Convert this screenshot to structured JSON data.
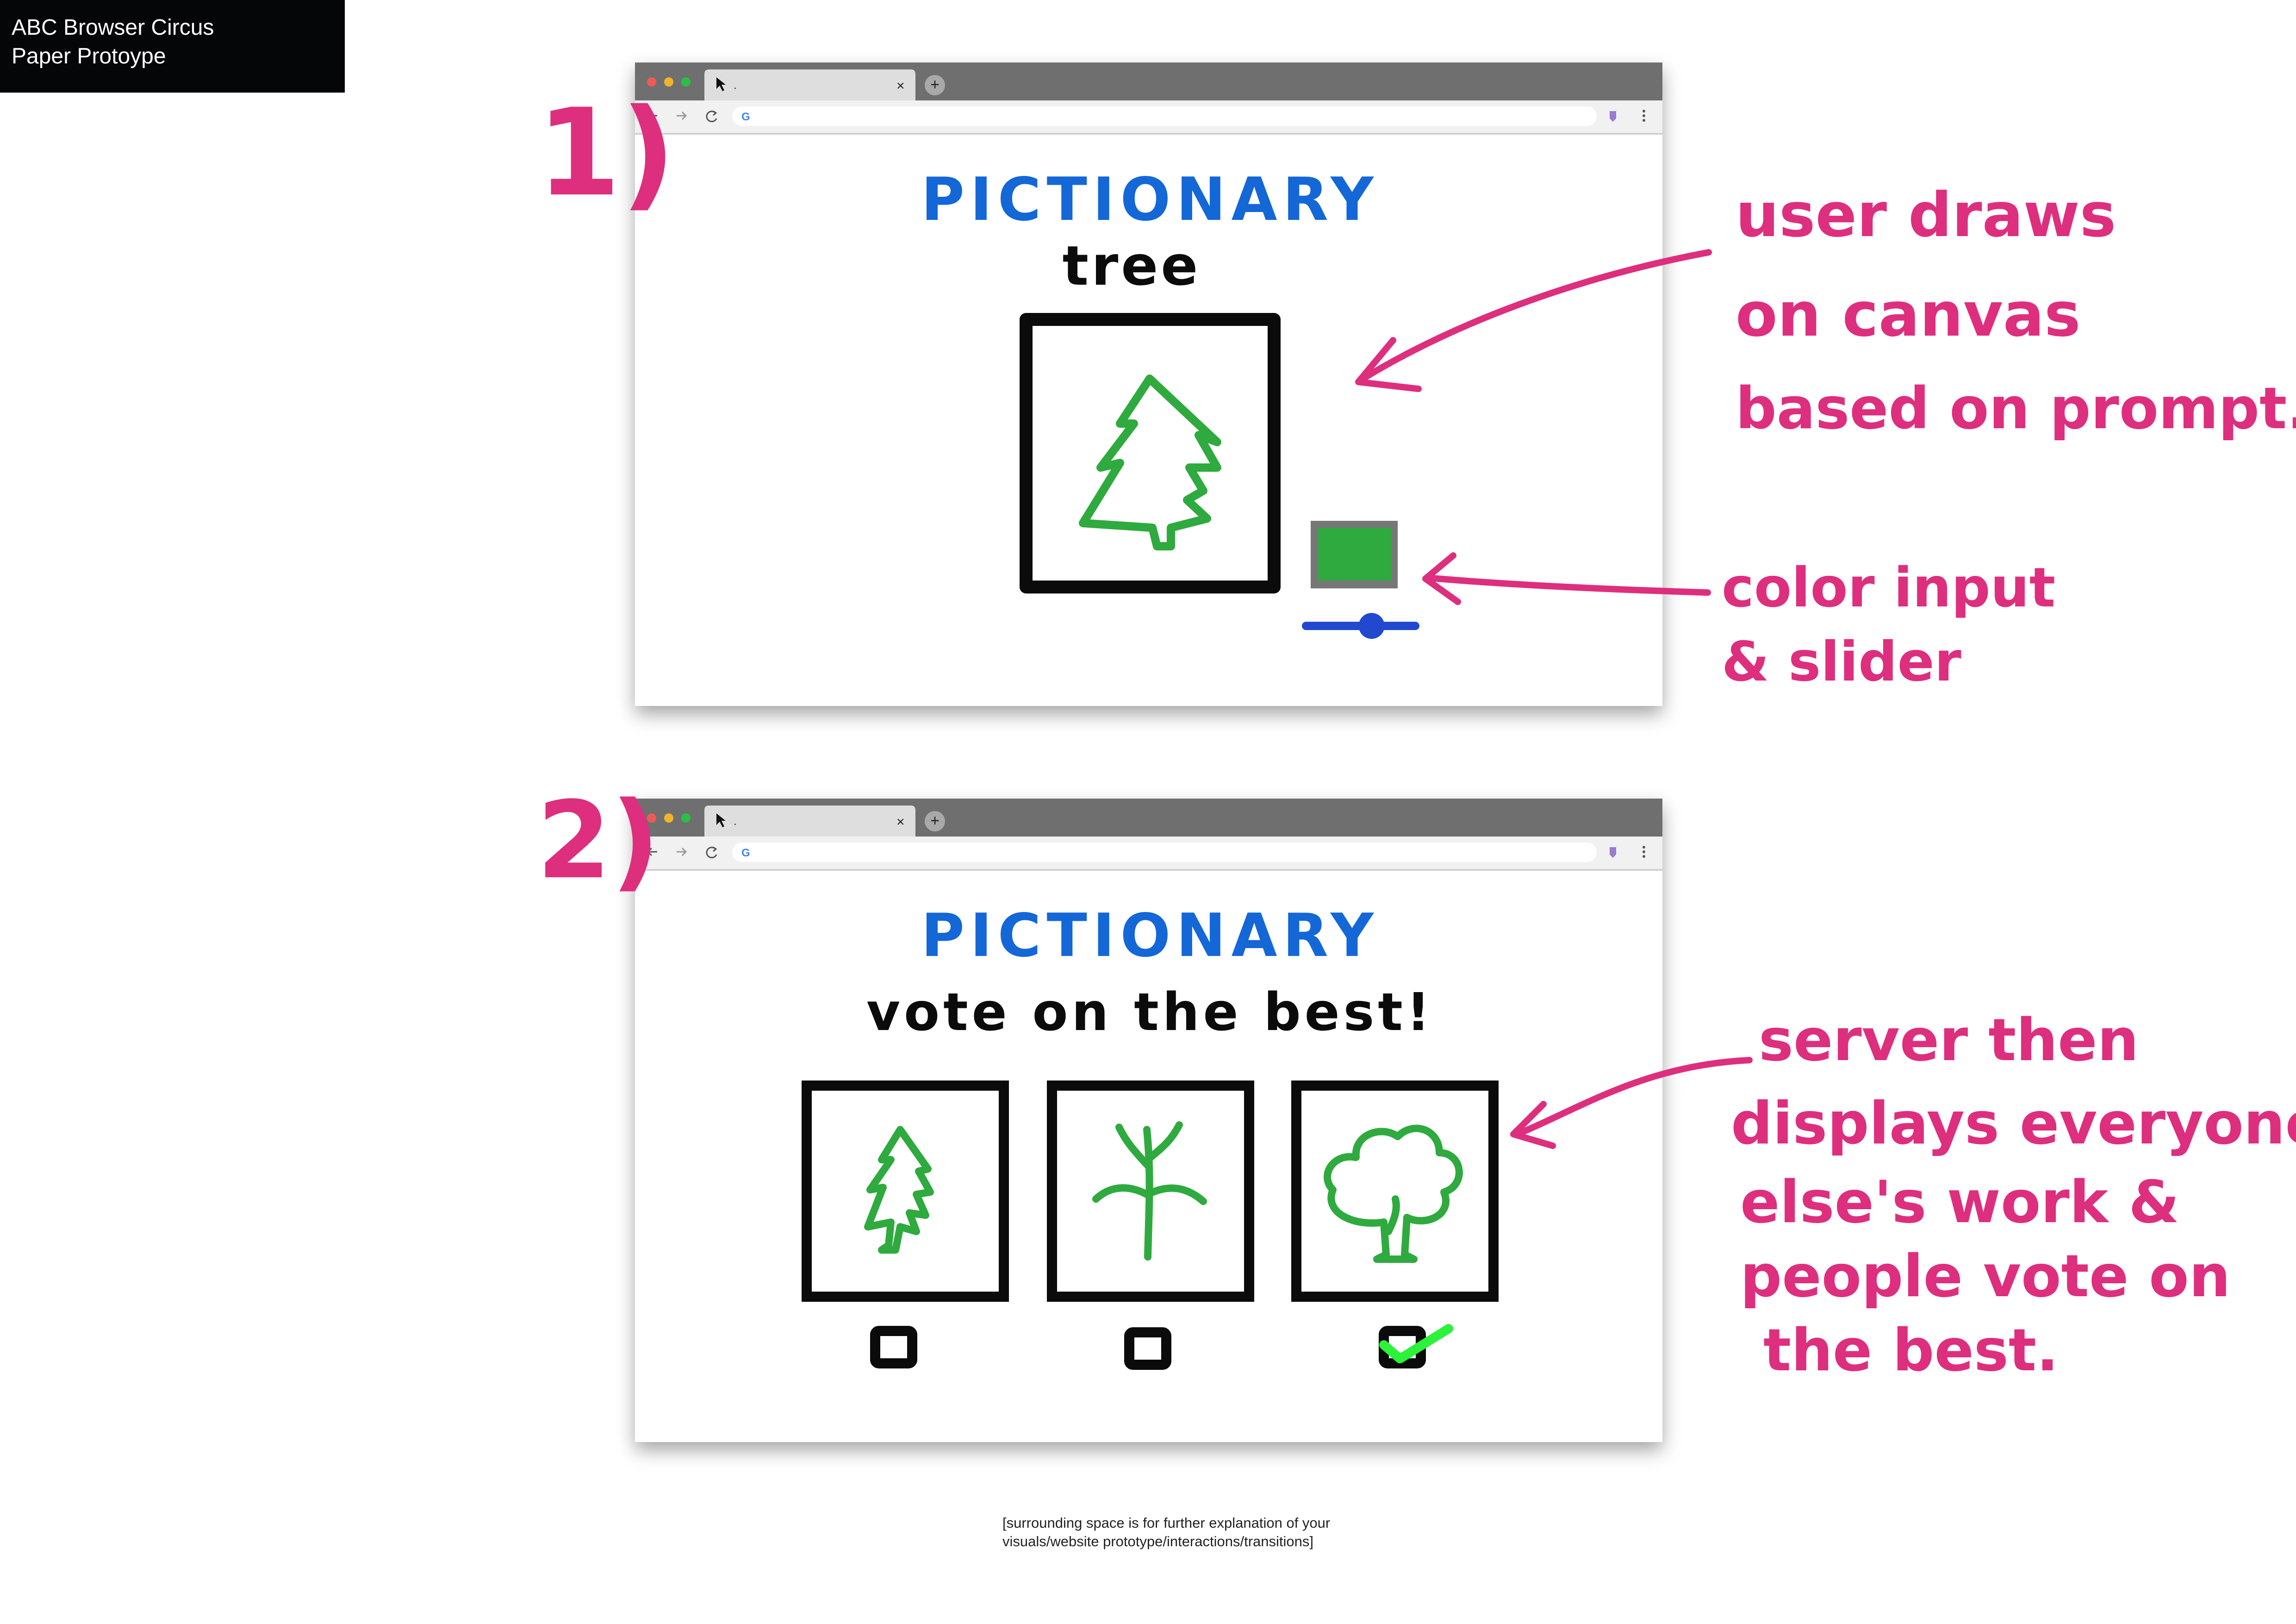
{
  "title_box": {
    "line1": "ABC Browser Circus",
    "line2": "Paper Protoype"
  },
  "browser": {
    "tab_title": ".",
    "tab_close_label": "×",
    "new_tab_label": "+",
    "address_value": "",
    "traffic_light_colors": [
      "#ee5b55",
      "#f5b32b",
      "#2bbf46"
    ]
  },
  "frame1": {
    "step_label": "1)",
    "app_title": "PICTIONARY",
    "prompt_word": "tree",
    "selected_color": "#2faa3f",
    "slider_value": 0.6
  },
  "frame2": {
    "step_label": "2)",
    "app_title": "PICTIONARY",
    "instruction": "vote on the best!",
    "drawings": [
      {
        "icon": "pine-tree-icon",
        "checked": false
      },
      {
        "icon": "branch-plant-icon",
        "checked": false
      },
      {
        "icon": "leafy-tree-icon",
        "checked": true
      }
    ]
  },
  "annotations": {
    "canvas_note": [
      "user draws",
      "on canvas",
      "based on prompt."
    ],
    "color_note": [
      "color input",
      "& slider"
    ],
    "server_note": [
      "server then",
      "displays everyone",
      "else's work &",
      "people vote on",
      "the best."
    ]
  },
  "footer_note": "[surrounding space is for further explanation of your visuals/website prototype/interactions/transitions]",
  "colors": {
    "annotation": "#dd2f7d",
    "title_blue": "#1467d6",
    "tree_green": "#2faa3f",
    "slider_blue": "#2148cf",
    "check_green": "#2bf23a"
  }
}
